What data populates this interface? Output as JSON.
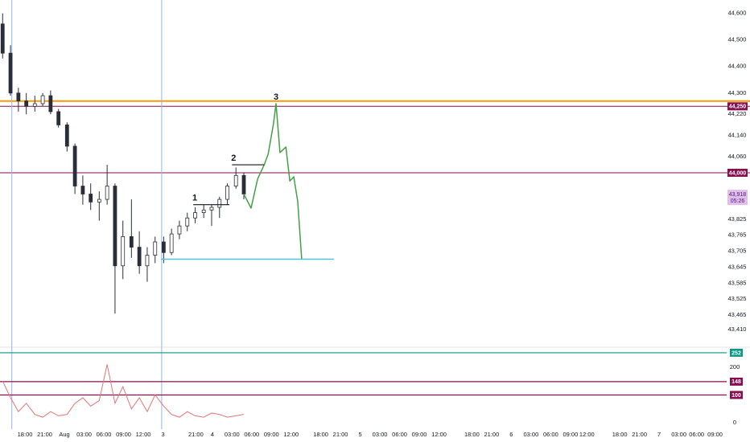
{
  "chart_data": [
    {
      "type": "candlestick",
      "xlim": [
        -3.8,
        106.4
      ],
      "ylim": [
        43350,
        44650
      ],
      "yticks": [
        {
          "value": 44600,
          "label": "44,600"
        },
        {
          "value": 44500,
          "label": "44,500"
        },
        {
          "value": 44400,
          "label": "44,400"
        },
        {
          "value": 44300,
          "label": "44,300"
        },
        {
          "value": 44220,
          "label": "44,220"
        },
        {
          "value": 44140,
          "label": "44,140"
        },
        {
          "value": 44060,
          "label": "44,060"
        },
        {
          "value": 43825,
          "label": "43,825"
        },
        {
          "value": 43765,
          "label": "43,765"
        },
        {
          "value": 43705,
          "label": "43,705"
        },
        {
          "value": 43645,
          "label": "43,645"
        },
        {
          "value": 43585,
          "label": "43,585"
        },
        {
          "value": 43525,
          "label": "43,525"
        },
        {
          "value": 43465,
          "label": "43,465"
        },
        {
          "value": 43410,
          "label": "43,410"
        }
      ],
      "color": "#2a2e39",
      "x": [
        -3.4,
        -2.2,
        -1.0,
        0.2,
        1.5,
        2.7,
        3.9,
        5.1,
        6.4,
        7.6,
        8.8,
        10.0,
        11.3,
        12.5,
        13.7,
        14.9,
        16.2,
        17.4,
        18.6,
        19.8,
        21.1,
        22.3,
        23.5,
        24.7,
        25.9,
        27.2,
        28.4,
        29.6,
        30.8,
        32.1,
        33.3
      ],
      "open": [
        44560,
        44450,
        44300,
        44270,
        44250,
        44260,
        44290,
        44230,
        44180,
        44100,
        43950,
        43920,
        43890,
        43900,
        43950,
        43650,
        43760,
        43720,
        43650,
        43690,
        43740,
        43700,
        43770,
        43800,
        43830,
        43850,
        43860,
        43870,
        43900,
        43950,
        43990
      ],
      "high": [
        44600,
        44480,
        44320,
        44300,
        44290,
        44300,
        44310,
        44240,
        44190,
        44110,
        43990,
        43960,
        43930,
        44030,
        43960,
        43820,
        43900,
        43780,
        43720,
        43760,
        43760,
        43790,
        43820,
        43850,
        43870,
        43880,
        43880,
        43910,
        43960,
        44020,
        44000
      ],
      "low": [
        44430,
        44290,
        44230,
        44220,
        44230,
        44250,
        44220,
        44170,
        44080,
        43920,
        43880,
        43860,
        43820,
        43880,
        43470,
        43600,
        43680,
        43620,
        43590,
        43660,
        43660,
        43690,
        43750,
        43780,
        43810,
        43830,
        43800,
        43830,
        43880,
        43940,
        43900
      ],
      "close": [
        44450,
        44300,
        44270,
        44250,
        44260,
        44290,
        44230,
        44180,
        44100,
        43950,
        43920,
        43890,
        43900,
        43950,
        43650,
        43760,
        43720,
        43650,
        43690,
        43740,
        43700,
        43770,
        43800,
        43830,
        43850,
        43860,
        43870,
        43900,
        43950,
        43990,
        43920
      ],
      "levels": [
        {
          "value": 44270,
          "color": "#ff9800"
        },
        {
          "value": 44250,
          "label": "44,250",
          "color": "#880e4f"
        },
        {
          "value": 44000,
          "label": "44,000",
          "color": "#880e4f"
        }
      ],
      "last_price": {
        "value": 43918,
        "label": "43,918",
        "countdown": "05:26",
        "color": "#e1bee7",
        "text_color": "#4a148c"
      },
      "vlines": {
        "x": [
          -2.0,
          20.8
        ],
        "color": "#90b4f0"
      },
      "projection": {
        "x": [
          33.3,
          34.4,
          35.4,
          36.4,
          37.0,
          37.8,
          38.2,
          38.8,
          39.7,
          40.3,
          40.9,
          41.5,
          42.1
        ],
        "values": [
          43920,
          43867,
          43977,
          44030,
          44070,
          44183,
          44260,
          44076,
          44097,
          43969,
          43985,
          43892,
          43677
        ],
        "color": "#43a047"
      },
      "target": {
        "x": [
          20.7,
          47.0
        ],
        "value": 43675,
        "color": "#4dc4d9"
      },
      "swings": [
        {
          "label": "1",
          "x": [
            25.6,
            31.1
          ],
          "value": 43880
        },
        {
          "label": "2",
          "x": [
            31.5,
            36.4
          ],
          "value": 44030
        },
        {
          "label": "3",
          "x": [
            38.2
          ],
          "value": 44260
        }
      ]
    },
    {
      "type": "line",
      "xlim": [
        -3.8,
        106.4
      ],
      "ylim": [
        -23,
        272
      ],
      "yticks": [
        0,
        200
      ],
      "xticks": [
        {
          "value": 0,
          "label": "18:00"
        },
        {
          "value": 3,
          "label": "21:00"
        },
        {
          "value": 6,
          "label": "Aug"
        },
        {
          "value": 9,
          "label": "03:00"
        },
        {
          "value": 12,
          "label": "06:00"
        },
        {
          "value": 15,
          "label": "09:00"
        },
        {
          "value": 18,
          "label": "12:00"
        },
        {
          "value": 21,
          "label": "3"
        },
        {
          "value": 26,
          "label": "21:00"
        },
        {
          "value": 28.5,
          "label": "4"
        },
        {
          "value": 31.5,
          "label": "03:00"
        },
        {
          "value": 34.5,
          "label": "06:00"
        },
        {
          "value": 37.5,
          "label": "09:00"
        },
        {
          "value": 40.5,
          "label": "12:00"
        },
        {
          "value": 45,
          "label": "18:00"
        },
        {
          "value": 48,
          "label": "21:00"
        },
        {
          "value": 51,
          "label": "5"
        },
        {
          "value": 54,
          "label": "03:00"
        },
        {
          "value": 57,
          "label": "06:00"
        },
        {
          "value": 60,
          "label": "09:00"
        },
        {
          "value": 63,
          "label": "12:00"
        },
        {
          "value": 68,
          "label": "18:00"
        },
        {
          "value": 71,
          "label": "21:00"
        },
        {
          "value": 74,
          "label": "6"
        },
        {
          "value": 77,
          "label": "03:00"
        },
        {
          "value": 80,
          "label": "06:00"
        },
        {
          "value": 83,
          "label": "09:00"
        },
        {
          "value": 85.5,
          "label": "12:00"
        },
        {
          "value": 90.5,
          "label": "18:00"
        },
        {
          "value": 93.5,
          "label": "21:00"
        },
        {
          "value": 96.5,
          "label": "7"
        },
        {
          "value": 99.5,
          "label": "03:00"
        },
        {
          "value": 102.2,
          "label": "06:00"
        },
        {
          "value": 105,
          "label": "09:00"
        }
      ],
      "x": [
        -3.4,
        -2.2,
        -1.0,
        0.2,
        1.5,
        2.7,
        3.9,
        5.1,
        6.4,
        7.6,
        8.8,
        10.0,
        11.3,
        12.5,
        13.7,
        14.9,
        16.2,
        17.4,
        18.6,
        19.8,
        21.1,
        22.3,
        23.5,
        24.7,
        25.9,
        27.2,
        28.4,
        29.6,
        30.8,
        32.1,
        33.3
      ],
      "values": [
        150,
        90,
        40,
        70,
        30,
        20,
        40,
        25,
        30,
        70,
        90,
        60,
        80,
        210,
        70,
        130,
        50,
        90,
        40,
        100,
        60,
        30,
        20,
        40,
        25,
        20,
        35,
        30,
        20,
        25,
        30
      ],
      "color": "#e57373",
      "levels": [
        {
          "value": 252,
          "color": "#089981"
        },
        {
          "value": 148,
          "color": "#880e4f"
        },
        {
          "value": 100,
          "color": "#880e4f"
        }
      ]
    }
  ]
}
